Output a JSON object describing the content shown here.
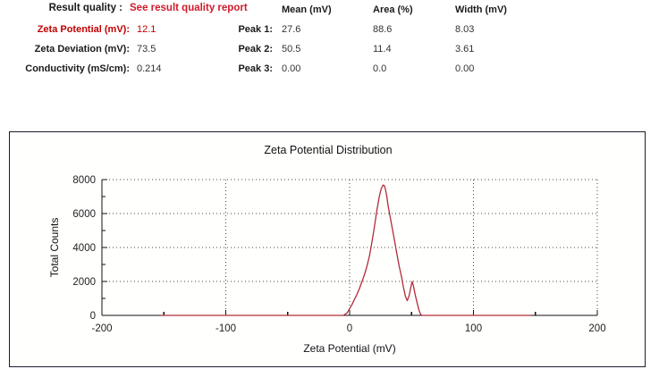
{
  "summary": {
    "rows": [
      {
        "label": "Zeta Potential (mV):",
        "value": "12.1",
        "highlight": true
      },
      {
        "label": "Zeta Deviation (mV):",
        "value": "73.5",
        "highlight": false
      },
      {
        "label": "Conductivity (mS/cm):",
        "value": "0.214",
        "highlight": false
      }
    ],
    "result_quality_label": "Result quality :",
    "result_quality_value": "See result quality report"
  },
  "peaks_table": {
    "columns": [
      "Mean (mV)",
      "Area (%)",
      "Width (mV)"
    ],
    "rows": [
      {
        "label": "Peak 1:",
        "mean": "27.6",
        "area": "88.6",
        "width": "8.03"
      },
      {
        "label": "Peak 2:",
        "mean": "50.5",
        "area": "11.4",
        "width": "3.61"
      },
      {
        "label": "Peak 3:",
        "mean": "0.00",
        "area": "0.0",
        "width": "0.00"
      }
    ]
  },
  "colors": {
    "accent_red": "#c00000",
    "link_red": "#cc1b2b",
    "curve_red": "#b22c38",
    "chart_border": "#1c1c30",
    "axis": "#111111",
    "grid_dots": "#444444"
  },
  "chart_data": {
    "type": "line",
    "title": "Zeta Potential Distribution",
    "xlabel": "Zeta Potential (mV)",
    "ylabel": "Total Counts",
    "xlim": [
      -200,
      200
    ],
    "ylim": [
      0,
      8000
    ],
    "x_ticks": [
      -200,
      -100,
      0,
      100,
      200
    ],
    "x_minor_ticks": [
      -150,
      -50,
      50,
      150
    ],
    "y_ticks": [
      0,
      2000,
      4000,
      6000,
      8000
    ],
    "y_minor_ticks": [
      1000,
      3000,
      5000,
      7000
    ],
    "grid": {
      "style": "dotted",
      "h_at": [
        2000,
        4000,
        6000,
        8000
      ],
      "v_at": [
        -100,
        0,
        100,
        200
      ]
    },
    "legend": "none",
    "series": [
      {
        "name": "Zeta Potential Distribution",
        "color": "#b22c38",
        "points": [
          [
            -152,
            0
          ],
          [
            -5,
            0
          ],
          [
            -2,
            150
          ],
          [
            0,
            400
          ],
          [
            2,
            650
          ],
          [
            4,
            950
          ],
          [
            6,
            1250
          ],
          [
            8,
            1600
          ],
          [
            10,
            2000
          ],
          [
            12,
            2400
          ],
          [
            14,
            2900
          ],
          [
            16,
            3500
          ],
          [
            18,
            4300
          ],
          [
            20,
            5200
          ],
          [
            22,
            6200
          ],
          [
            24,
            7000
          ],
          [
            25.5,
            7450
          ],
          [
            27,
            7680
          ],
          [
            28,
            7650
          ],
          [
            29,
            7400
          ],
          [
            30,
            7000
          ],
          [
            31,
            6500
          ],
          [
            32.5,
            5900
          ],
          [
            34,
            5300
          ],
          [
            36,
            4500
          ],
          [
            38,
            3700
          ],
          [
            40,
            2900
          ],
          [
            42,
            2250
          ],
          [
            43.5,
            1650
          ],
          [
            45,
            1150
          ],
          [
            46.5,
            870
          ],
          [
            48,
            1150
          ],
          [
            49.5,
            1700
          ],
          [
            50.5,
            2000
          ],
          [
            51.5,
            1750
          ],
          [
            53,
            1200
          ],
          [
            54.5,
            750
          ],
          [
            56,
            300
          ],
          [
            57.5,
            50
          ],
          [
            58.5,
            0
          ],
          [
            146,
            0
          ]
        ]
      }
    ]
  }
}
